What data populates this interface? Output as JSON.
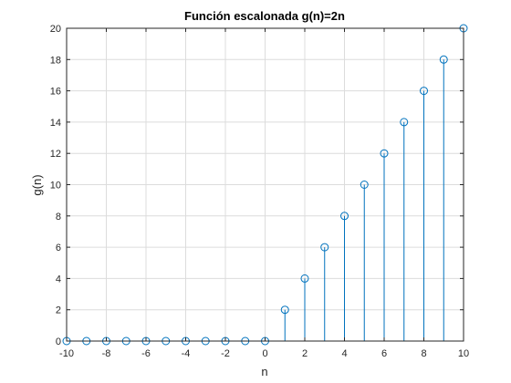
{
  "chart_data": {
    "type": "stem",
    "title": "Función escalonada g(n)=2n",
    "xlabel": "n",
    "ylabel": "g(n)",
    "xlim": [
      -10,
      10
    ],
    "ylim": [
      0,
      20
    ],
    "xticks": [
      "-10",
      "-8",
      "-6",
      "-4",
      "-2",
      "0",
      "2",
      "4",
      "6",
      "8",
      "10"
    ],
    "yticks": [
      "0",
      "2",
      "4",
      "6",
      "8",
      "10",
      "12",
      "14",
      "16",
      "18",
      "20"
    ],
    "grid": true,
    "marker": "circle",
    "series_color": "#0072BD",
    "x": [
      -10,
      -9,
      -8,
      -7,
      -6,
      -5,
      -4,
      -3,
      -2,
      -1,
      0,
      1,
      2,
      3,
      4,
      5,
      6,
      7,
      8,
      9,
      10
    ],
    "values": [
      0,
      0,
      0,
      0,
      0,
      0,
      0,
      0,
      0,
      0,
      0,
      2,
      4,
      6,
      8,
      10,
      12,
      14,
      16,
      18,
      20
    ]
  }
}
